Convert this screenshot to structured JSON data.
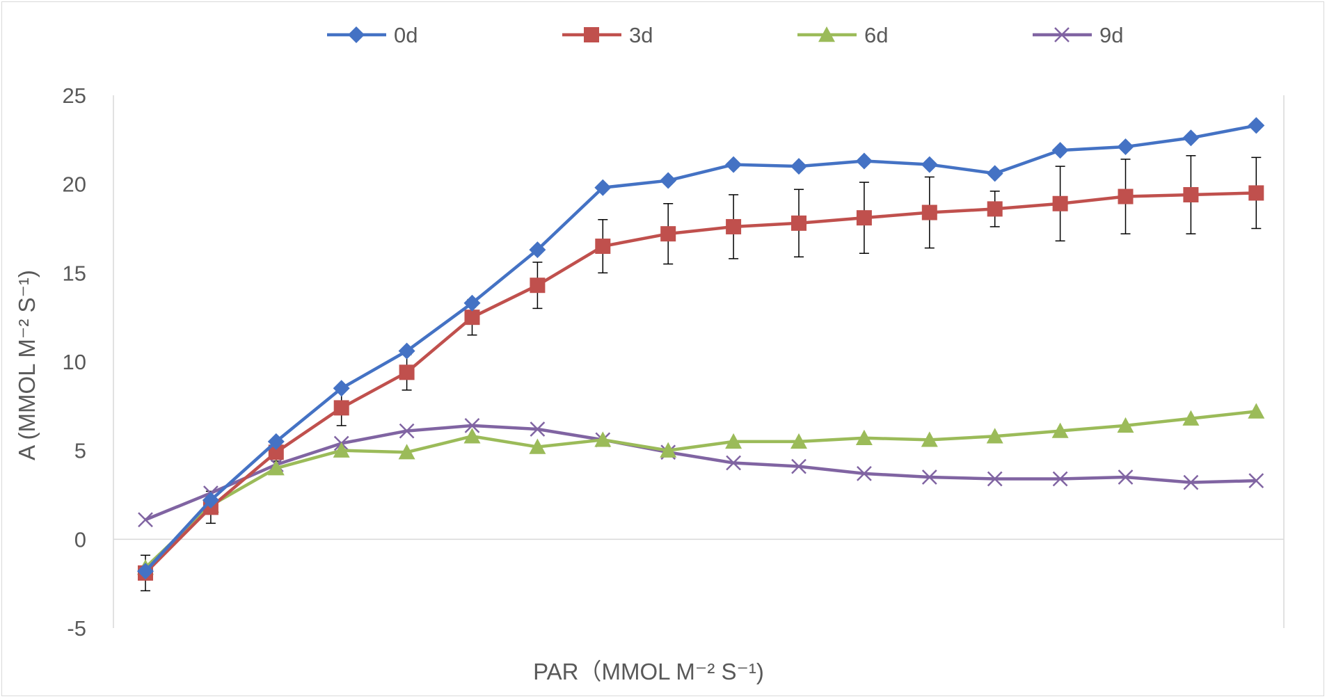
{
  "chart_data": {
    "type": "line",
    "xlabel": "PAR（MMOL M⁻² S⁻¹)",
    "ylabel": "A (MMOL M⁻² S⁻¹)",
    "ylim": [
      -5,
      25
    ],
    "yticks": [
      -5,
      0,
      5,
      10,
      15,
      20,
      25
    ],
    "yticklabels": [
      "-5",
      "0",
      "5",
      "10",
      "15",
      "20",
      "25"
    ],
    "legend_position": "top",
    "grid": false,
    "x": [
      1,
      2,
      3,
      4,
      5,
      6,
      7,
      8,
      9,
      10,
      11,
      12,
      13,
      14,
      15,
      16,
      17,
      18
    ],
    "series": [
      {
        "name": "0d",
        "color": "#4472C4",
        "marker": "diamond",
        "values": [
          -1.8,
          2.2,
          5.5,
          8.5,
          10.6,
          13.3,
          16.3,
          19.8,
          20.2,
          21.1,
          21.0,
          21.3,
          21.1,
          20.6,
          21.9,
          22.1,
          22.6,
          23.3
        ]
      },
      {
        "name": "3d",
        "color": "#C0504D",
        "marker": "square",
        "values": [
          -1.9,
          1.8,
          4.9,
          7.4,
          9.4,
          12.5,
          14.3,
          16.5,
          17.2,
          17.6,
          17.8,
          18.1,
          18.4,
          18.6,
          18.9,
          19.3,
          19.4,
          19.5
        ],
        "errors": [
          1.0,
          0.9,
          0.5,
          1.0,
          1.0,
          1.0,
          1.3,
          1.5,
          1.7,
          1.8,
          1.9,
          2.0,
          2.0,
          1.0,
          2.1,
          2.1,
          2.2,
          2.0
        ]
      },
      {
        "name": "6d",
        "color": "#9BBB59",
        "marker": "triangle",
        "values": [
          -1.6,
          1.9,
          4.0,
          5.0,
          4.9,
          5.8,
          5.2,
          5.6,
          5.0,
          5.5,
          5.5,
          5.7,
          5.6,
          5.8,
          6.1,
          6.4,
          6.8,
          7.2
        ]
      },
      {
        "name": "9d",
        "color": "#8064A2",
        "marker": "x",
        "values": [
          1.1,
          2.6,
          4.2,
          5.4,
          6.1,
          6.4,
          6.2,
          5.6,
          4.9,
          4.3,
          4.1,
          3.7,
          3.5,
          3.4,
          3.4,
          3.5,
          3.2,
          3.3
        ]
      }
    ]
  }
}
